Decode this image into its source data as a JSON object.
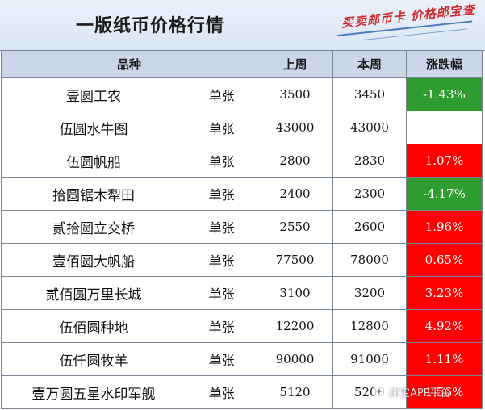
{
  "header": {
    "title": "一版纸币价格行情",
    "brand": "买卖邮币卡 价格邮宝查"
  },
  "table": {
    "columns": [
      "品种",
      "上周",
      "本周",
      "涨跌幅"
    ],
    "rows": [
      {
        "name": "壹圆工农",
        "unit": "单张",
        "last_week": "3500",
        "this_week": "3450",
        "change": "-1.43%",
        "trend": "down"
      },
      {
        "name": "伍圆水牛图",
        "unit": "单张",
        "last_week": "43000",
        "this_week": "43000",
        "change": "",
        "trend": "flat"
      },
      {
        "name": "伍圆帆船",
        "unit": "单张",
        "last_week": "2800",
        "this_week": "2830",
        "change": "1.07%",
        "trend": "up"
      },
      {
        "name": "拾圆锯木犁田",
        "unit": "单张",
        "last_week": "2400",
        "this_week": "2300",
        "change": "-4.17%",
        "trend": "down"
      },
      {
        "name": "贰拾圆立交桥",
        "unit": "单张",
        "last_week": "2550",
        "this_week": "2600",
        "change": "1.96%",
        "trend": "up"
      },
      {
        "name": "壹佰圆大帆船",
        "unit": "单张",
        "last_week": "77500",
        "this_week": "78000",
        "change": "0.65%",
        "trend": "up"
      },
      {
        "name": "贰佰圆万里长城",
        "unit": "单张",
        "last_week": "3100",
        "this_week": "3200",
        "change": "3.23%",
        "trend": "up"
      },
      {
        "name": "伍佰圆种地",
        "unit": "单张",
        "last_week": "12200",
        "this_week": "12800",
        "change": "4.92%",
        "trend": "up"
      },
      {
        "name": "伍仟圆牧羊",
        "unit": "单张",
        "last_week": "90000",
        "this_week": "91000",
        "change": "1.11%",
        "trend": "up"
      },
      {
        "name": "壹万圆五星水印军舰",
        "unit": "单张",
        "last_week": "5120",
        "this_week": "5200",
        "change": "1.56%",
        "trend": "up"
      }
    ]
  },
  "watermark": {
    "text": "邮宝APP平台"
  },
  "colors": {
    "up": "#ff0000",
    "down": "#2f9c2f",
    "header_bg": "#cbd6e8",
    "title_bg": "#dbe6f4",
    "brand": "#cc2b2b"
  }
}
